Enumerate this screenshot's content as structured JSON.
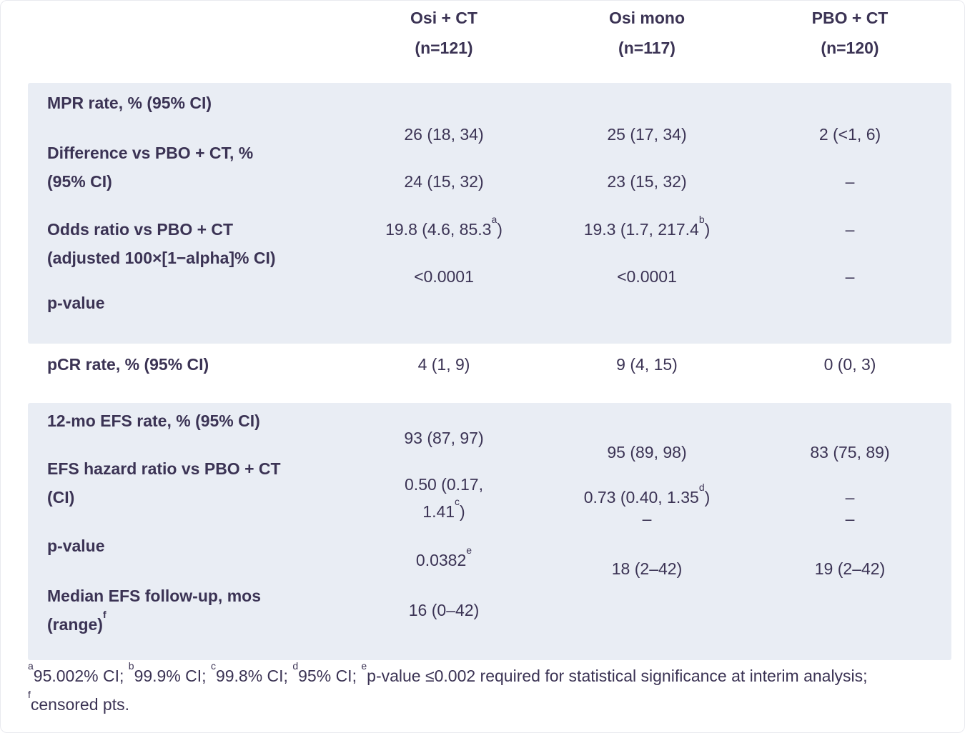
{
  "colors": {
    "shade": "#e9edf4",
    "text": "#3b3354",
    "background": "#ffffff"
  },
  "columns": [
    {
      "name": "Osi + CT",
      "n": "(n=121)"
    },
    {
      "name": "Osi mono",
      "n": "(n=117)"
    },
    {
      "name": "PBO + CT",
      "n": "(n=120)"
    }
  ],
  "block1": {
    "mpr": {
      "label": "MPR rate, % (95% CI)",
      "values": [
        "26 (18, 34)",
        "25 (17, 34)",
        "2 (<1, 6)"
      ]
    },
    "diff": {
      "label1": "Difference vs PBO + CT, %",
      "label2": "(95% CI)",
      "values": [
        "24 (15, 32)",
        "23 (15, 32)",
        "–"
      ]
    },
    "or": {
      "label1": "Odds ratio vs PBO + CT",
      "label2": "(adjusted 100×[1−alpha]% CI)",
      "values": [
        {
          "text": "19.8 (4.6, 85.3",
          "sup": "a",
          "after": ")"
        },
        {
          "text": "19.3 (1.7, 217.4",
          "sup": "b",
          "after": ")"
        },
        {
          "text": "–"
        }
      ]
    },
    "pval": {
      "label": "p-value",
      "values": [
        "<0.0001",
        "<0.0001",
        "–"
      ]
    }
  },
  "pcr": {
    "label": "pCR rate, % (95% CI)",
    "values": [
      "4 (1, 9)",
      "9 (4, 15)",
      "0 (0, 3)"
    ]
  },
  "block2": {
    "efs": {
      "label": "12-mo EFS rate, % (95% CI)",
      "values": [
        "93 (87, 97)",
        "95 (89, 98)",
        "83 (75, 89)"
      ]
    },
    "hr": {
      "label1": "EFS hazard ratio vs PBO + CT",
      "label2": "(CI)",
      "values": [
        {
          "line1": "0.50 (0.17,",
          "line2": "1.41",
          "sup": "c",
          "after": ")"
        },
        {
          "text": "0.73 (0.40, 1.35",
          "sup": "d",
          "after": ")"
        },
        {
          "text": "–"
        }
      ]
    },
    "pval": {
      "label": "p-value",
      "values": [
        {
          "text": "0.0382",
          "sup": "e"
        },
        {
          "text": "–"
        },
        {
          "text": "–"
        }
      ]
    },
    "fu": {
      "label1": "Median EFS follow-up, mos",
      "label2": "(range)",
      "label2_sup": "f",
      "values": [
        "16 (0–42)",
        "18 (2–42)",
        "19 (2–42)"
      ]
    }
  },
  "footnote": {
    "segments": [
      {
        "sup": "a",
        "text": "95.002% CI; "
      },
      {
        "sup": "b",
        "text": "99.9% CI; "
      },
      {
        "sup": "c",
        "text": "99.8% CI; "
      },
      {
        "sup": "d",
        "text": "95% CI; "
      },
      {
        "sup": "e",
        "text": "p-value ≤0.002 required for statistical significance at interim analysis; "
      },
      {
        "sup": "f",
        "text": "censored pts."
      }
    ]
  }
}
